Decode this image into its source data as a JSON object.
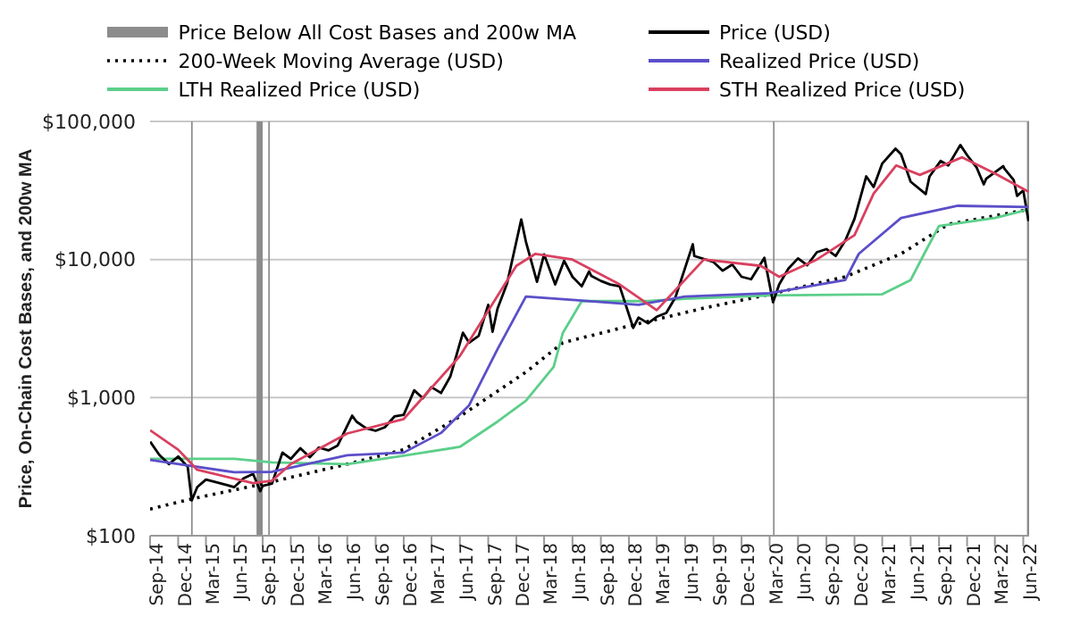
{
  "chart_data": {
    "type": "line",
    "ylabel": "Price, On-Chain Cost Bases, and 200w MA",
    "log": "y",
    "grid": "y",
    "legend": "top",
    "xlim": [
      "2014-09-01",
      "2022-06-20"
    ],
    "xticks": [
      {
        "value": "2014-09-01",
        "label": "Sep-14"
      },
      {
        "value": "2014-12-01",
        "label": "Dec-14"
      },
      {
        "value": "2015-03-01",
        "label": "Mar-15"
      },
      {
        "value": "2015-06-01",
        "label": "Jun-15"
      },
      {
        "value": "2015-09-01",
        "label": "Sep-15"
      },
      {
        "value": "2015-12-01",
        "label": "Dec-15"
      },
      {
        "value": "2016-03-01",
        "label": "Mar-16"
      },
      {
        "value": "2016-06-01",
        "label": "Jun-16"
      },
      {
        "value": "2016-09-01",
        "label": "Sep-16"
      },
      {
        "value": "2016-12-01",
        "label": "Dec-16"
      },
      {
        "value": "2017-03-01",
        "label": "Mar-17"
      },
      {
        "value": "2017-06-01",
        "label": "Jun-17"
      },
      {
        "value": "2017-09-01",
        "label": "Sep-17"
      },
      {
        "value": "2017-12-01",
        "label": "Dec-17"
      },
      {
        "value": "2018-03-01",
        "label": "Mar-18"
      },
      {
        "value": "2018-06-01",
        "label": "Jun-18"
      },
      {
        "value": "2018-09-01",
        "label": "Sep-18"
      },
      {
        "value": "2018-12-01",
        "label": "Dec-18"
      },
      {
        "value": "2019-03-01",
        "label": "Mar-19"
      },
      {
        "value": "2019-06-01",
        "label": "Jun-19"
      },
      {
        "value": "2019-09-01",
        "label": "Sep-19"
      },
      {
        "value": "2019-12-01",
        "label": "Dec-19"
      },
      {
        "value": "2020-03-01",
        "label": "Mar-20"
      },
      {
        "value": "2020-06-01",
        "label": "Jun-20"
      },
      {
        "value": "2020-09-01",
        "label": "Sep-20"
      },
      {
        "value": "2020-12-01",
        "label": "Dec-20"
      },
      {
        "value": "2021-03-01",
        "label": "Mar-21"
      },
      {
        "value": "2021-06-01",
        "label": "Jun-21"
      },
      {
        "value": "2021-09-01",
        "label": "Sep-21"
      },
      {
        "value": "2021-12-01",
        "label": "Dec-21"
      },
      {
        "value": "2022-03-01",
        "label": "Mar-22"
      },
      {
        "value": "2022-06-01",
        "label": "Jun-22"
      }
    ],
    "ylim": [
      100,
      100000
    ],
    "yticks": [
      {
        "value": 100,
        "label": "$100"
      },
      {
        "value": 1000,
        "label": "$1,000"
      },
      {
        "value": 10000,
        "label": "$10,000"
      },
      {
        "value": 100000,
        "label": "$100,000"
      }
    ],
    "bands": [
      {
        "axis": "x",
        "from": "2015-01-12",
        "to": "2015-01-17",
        "label": "Price Below All Cost Bases and 200w MA",
        "color": "#8c8c8c"
      },
      {
        "axis": "x",
        "from": "2015-08-12",
        "to": "2015-09-01",
        "color": "#8c8c8c"
      },
      {
        "axis": "x",
        "from": "2015-09-19",
        "to": "2015-09-24",
        "color": "#8c8c8c"
      },
      {
        "axis": "x",
        "from": "2020-03-12",
        "to": "2020-03-17",
        "color": "#8c8c8c"
      },
      {
        "axis": "x",
        "from": "2022-06-13",
        "to": "2022-06-20",
        "color": "#8c8c8c"
      }
    ],
    "series": [
      {
        "name": "200-Week Moving Average (USD)",
        "color": "#000000",
        "line_style": "dotted",
        "x": [
          "2014-09-01",
          "2015-01-15",
          "2015-09-01",
          "2016-06-01",
          "2016-12-01",
          "2017-06-01",
          "2018-01-01",
          "2018-05-01",
          "2018-12-01",
          "2019-08-01",
          "2020-03-01",
          "2020-11-01",
          "2021-05-01",
          "2021-10-01",
          "2022-06-18"
        ],
        "values": [
          156,
          185,
          237,
          330,
          420,
          730,
          1530,
          2500,
          3300,
          4450,
          5600,
          7500,
          11000,
          18000,
          23000
        ]
      },
      {
        "name": "LTH Realized Price (USD)",
        "color": "#5ccf8a",
        "x": [
          "2014-09-01",
          "2015-06-01",
          "2015-10-01",
          "2016-06-01",
          "2016-12-01",
          "2017-06-01",
          "2017-10-01",
          "2018-01-01",
          "2018-04-01",
          "2018-05-01",
          "2018-07-01",
          "2019-02-01",
          "2019-06-01",
          "2020-03-01",
          "2021-03-01",
          "2021-06-01",
          "2021-07-15",
          "2021-09-01",
          "2022-03-01",
          "2022-06-18"
        ],
        "values": [
          360,
          360,
          340,
          330,
          380,
          440,
          670,
          950,
          1670,
          2950,
          5000,
          5000,
          5200,
          5500,
          5600,
          7100,
          11000,
          17500,
          20000,
          23000
        ]
      },
      {
        "name": "Price (USD)",
        "color": "#000000",
        "x": [
          "2014-09-01",
          "2014-10-01",
          "2014-11-01",
          "2014-12-01",
          "2015-01-01",
          "2015-01-14",
          "2015-02-01",
          "2015-03-01",
          "2015-04-01",
          "2015-05-01",
          "2015-06-01",
          "2015-07-01",
          "2015-08-01",
          "2015-08-24",
          "2015-09-01",
          "2015-10-01",
          "2015-11-04",
          "2015-12-01",
          "2016-01-01",
          "2016-02-01",
          "2016-03-01",
          "2016-04-01",
          "2016-05-01",
          "2016-06-17",
          "2016-07-01",
          "2016-08-01",
          "2016-09-01",
          "2016-10-01",
          "2016-11-01",
          "2016-12-01",
          "2017-01-04",
          "2017-02-01",
          "2017-03-01",
          "2017-04-01",
          "2017-05-01",
          "2017-06-11",
          "2017-07-01",
          "2017-08-01",
          "2017-09-01",
          "2017-09-15",
          "2017-10-01",
          "2017-11-01",
          "2017-12-17",
          "2018-01-01",
          "2018-02-06",
          "2018-03-01",
          "2018-04-06",
          "2018-05-05",
          "2018-06-01",
          "2018-07-01",
          "2018-07-25",
          "2018-08-01",
          "2018-09-01",
          "2018-10-01",
          "2018-11-01",
          "2018-12-15",
          "2019-01-01",
          "2019-02-01",
          "2019-03-01",
          "2019-04-01",
          "2019-05-01",
          "2019-06-26",
          "2019-07-01",
          "2019-08-01",
          "2019-09-01",
          "2019-10-01",
          "2019-11-01",
          "2019-12-01",
          "2020-01-01",
          "2020-02-13",
          "2020-03-12",
          "2020-04-01",
          "2020-05-01",
          "2020-06-01",
          "2020-07-01",
          "2020-08-01",
          "2020-09-01",
          "2020-10-01",
          "2020-11-01",
          "2020-12-01",
          "2021-01-08",
          "2021-02-01",
          "2021-03-01",
          "2021-04-13",
          "2021-05-01",
          "2021-06-01",
          "2021-07-20",
          "2021-08-01",
          "2021-09-06",
          "2021-10-01",
          "2021-11-09",
          "2021-12-01",
          "2022-01-01",
          "2022-01-24",
          "2022-02-01",
          "2022-03-28",
          "2022-04-01",
          "2022-05-01",
          "2022-05-12",
          "2022-06-01",
          "2022-06-18"
        ],
        "values": [
          480,
          385,
          330,
          375,
          315,
          180,
          225,
          255,
          245,
          235,
          225,
          260,
          280,
          210,
          230,
          238,
          400,
          360,
          430,
          370,
          435,
          415,
          450,
          740,
          670,
          600,
          575,
          610,
          730,
          750,
          1130,
          990,
          1190,
          1080,
          1420,
          2950,
          2500,
          2800,
          4700,
          3000,
          4400,
          6700,
          19500,
          13500,
          6900,
          10900,
          6600,
          9800,
          7500,
          6400,
          8200,
          7600,
          7000,
          6600,
          6400,
          3200,
          3800,
          3450,
          3850,
          4100,
          5350,
          12900,
          10600,
          10100,
          9600,
          8300,
          9200,
          7500,
          7200,
          10300,
          4900,
          6600,
          8600,
          10200,
          9100,
          11300,
          11900,
          10600,
          13700,
          19700,
          40000,
          33500,
          49600,
          63500,
          57800,
          36600,
          29800,
          39900,
          51700,
          48100,
          67500,
          57000,
          46300,
          35000,
          38500,
          47500,
          45500,
          37700,
          28900,
          31700,
          19000
        ]
      },
      {
        "name": "Realized Price (USD)",
        "color": "#5b4fc9",
        "x": [
          "2014-09-01",
          "2015-06-01",
          "2015-10-01",
          "2016-06-01",
          "2016-12-01",
          "2017-04-01",
          "2017-07-01",
          "2017-10-01",
          "2018-01-01",
          "2018-06-01",
          "2019-01-01",
          "2019-06-01",
          "2020-03-01",
          "2020-11-01",
          "2020-12-15",
          "2021-05-01",
          "2021-11-01",
          "2022-06-18"
        ],
        "values": [
          354,
          288,
          290,
          383,
          400,
          555,
          880,
          2240,
          5400,
          5100,
          4700,
          5400,
          5700,
          7100,
          11000,
          20000,
          24500,
          24000
        ]
      },
      {
        "name": "STH Realized Price (USD)",
        "color": "#d9405f",
        "x": [
          "2014-09-01",
          "2014-12-01",
          "2015-02-01",
          "2015-08-01",
          "2015-10-01",
          "2015-12-01",
          "2016-06-01",
          "2016-12-01",
          "2017-06-01",
          "2017-12-01",
          "2018-02-01",
          "2018-06-01",
          "2018-11-01",
          "2019-03-01",
          "2019-08-01",
          "2020-02-01",
          "2020-04-01",
          "2020-08-01",
          "2020-12-01",
          "2021-02-01",
          "2021-04-15",
          "2021-07-01",
          "2021-11-15",
          "2022-03-01",
          "2022-06-18"
        ],
        "values": [
          580,
          420,
          300,
          240,
          250,
          330,
          550,
          700,
          2000,
          9000,
          11000,
          10000,
          6600,
          4300,
          10000,
          9000,
          7500,
          10000,
          15000,
          30000,
          48000,
          41000,
          55000,
          42000,
          31000
        ]
      }
    ]
  }
}
